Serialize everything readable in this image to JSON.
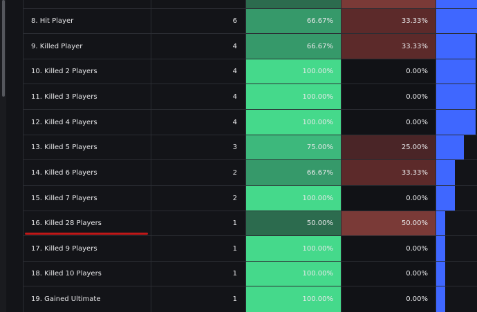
{
  "rows": [
    {
      "name": "",
      "count": "",
      "win": "",
      "loss": "",
      "win_bg": "#2c6b4e",
      "loss_bg": "#7a3a37",
      "bar_frac": 1.0
    },
    {
      "name": "8. Hit Player",
      "count": "6",
      "win": "66.67%",
      "loss": "33.33%",
      "win_bg": "#36996a",
      "loss_bg": "#5c2a2a",
      "bar_frac": 1.0
    },
    {
      "name": "9. Killed Player",
      "count": "4",
      "win": "66.67%",
      "loss": "33.33%",
      "win_bg": "#36996a",
      "loss_bg": "#5c2a2a",
      "bar_frac": 0.95
    },
    {
      "name": "10. Killed 2 Players",
      "count": "4",
      "win": "100.00%",
      "loss": "0.00%",
      "win_bg": "#45d98b",
      "loss_bg": "#111216",
      "bar_frac": 0.95
    },
    {
      "name": "11. Killed 3 Players",
      "count": "4",
      "win": "100.00%",
      "loss": "0.00%",
      "win_bg": "#45d98b",
      "loss_bg": "#111216",
      "bar_frac": 0.95
    },
    {
      "name": "12. Killed 4 Players",
      "count": "4",
      "win": "100.00%",
      "loss": "0.00%",
      "win_bg": "#45d98b",
      "loss_bg": "#111216",
      "bar_frac": 0.95
    },
    {
      "name": "13. Killed 5 Players",
      "count": "3",
      "win": "75.00%",
      "loss": "25.00%",
      "win_bg": "#3db87c",
      "loss_bg": "#4a2527",
      "bar_frac": 0.66
    },
    {
      "name": "14. Killed 6 Players",
      "count": "2",
      "win": "66.67%",
      "loss": "33.33%",
      "win_bg": "#36996a",
      "loss_bg": "#5c2a2a",
      "bar_frac": 0.45
    },
    {
      "name": "15. Killed 7 Players",
      "count": "2",
      "win": "100.00%",
      "loss": "0.00%",
      "win_bg": "#45d98b",
      "loss_bg": "#111216",
      "bar_frac": 0.45
    },
    {
      "name": "16. Killed 28 Players",
      "count": "1",
      "win": "50.00%",
      "loss": "50.00%",
      "win_bg": "#2c6b4e",
      "loss_bg": "#7a3a37",
      "bar_frac": 0.22
    },
    {
      "name": "17. Killed 9 Players",
      "count": "1",
      "win": "100.00%",
      "loss": "0.00%",
      "win_bg": "#45d98b",
      "loss_bg": "#111216",
      "bar_frac": 0.22
    },
    {
      "name": "18. Killed 10 Players",
      "count": "1",
      "win": "100.00%",
      "loss": "0.00%",
      "win_bg": "#45d98b",
      "loss_bg": "#111216",
      "bar_frac": 0.22
    },
    {
      "name": "19. Gained Ultimate",
      "count": "1",
      "win": "100.00%",
      "loss": "0.00%",
      "win_bg": "#45d98b",
      "loss_bg": "#111216",
      "bar_frac": 0.22
    }
  ],
  "bar_color": "#3f67ff",
  "annotation_color": "#c01818"
}
